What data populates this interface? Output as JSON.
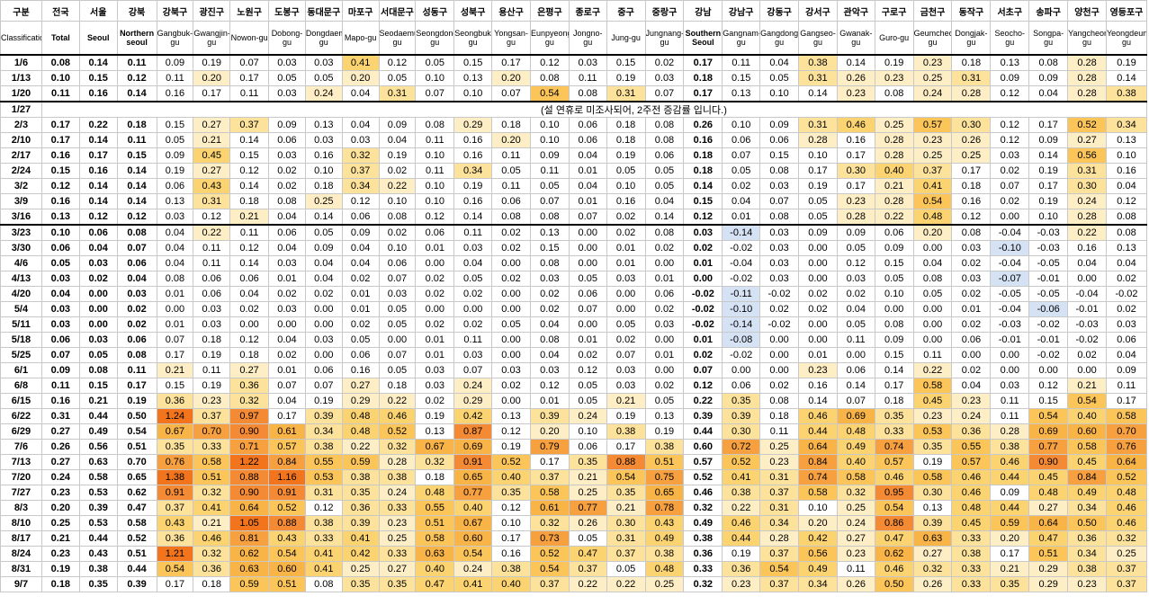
{
  "columns": [
    {
      "ko": "구분",
      "en": "Classification"
    },
    {
      "ko": "전국",
      "en": "Total"
    },
    {
      "ko": "서울",
      "en": "Seoul"
    },
    {
      "ko": "강북",
      "en": "Northern seoul"
    },
    {
      "ko": "강북구",
      "en": "Gangbuk-gu"
    },
    {
      "ko": "광진구",
      "en": "Gwangjin-gu"
    },
    {
      "ko": "노원구",
      "en": "Nowon-gu"
    },
    {
      "ko": "도봉구",
      "en": "Dobong-gu"
    },
    {
      "ko": "동대문구",
      "en": "Dongdaemun-gu"
    },
    {
      "ko": "마포구",
      "en": "Mapo-gu"
    },
    {
      "ko": "서대문구",
      "en": "Seodaemun-gu"
    },
    {
      "ko": "성동구",
      "en": "Seongdong-gu"
    },
    {
      "ko": "성북구",
      "en": "Seongbuk-gu"
    },
    {
      "ko": "용산구",
      "en": "Yongsan-gu"
    },
    {
      "ko": "은평구",
      "en": "Eunpyeong-gu"
    },
    {
      "ko": "종로구",
      "en": "Jongno-gu"
    },
    {
      "ko": "중구",
      "en": "Jung-gu"
    },
    {
      "ko": "중랑구",
      "en": "Jungnang-gu"
    },
    {
      "ko": "강남",
      "en": "Southern Seoul"
    },
    {
      "ko": "강남구",
      "en": "Gangnam-gu"
    },
    {
      "ko": "강동구",
      "en": "Gangdong-gu"
    },
    {
      "ko": "강서구",
      "en": "Gangseo-gu"
    },
    {
      "ko": "관악구",
      "en": "Gwanak-gu"
    },
    {
      "ko": "구로구",
      "en": "Guro-gu"
    },
    {
      "ko": "금천구",
      "en": "Geumcheon-gu"
    },
    {
      "ko": "동작구",
      "en": "Dongjak-gu"
    },
    {
      "ko": "서초구",
      "en": "Seocho-gu"
    },
    {
      "ko": "송파구",
      "en": "Songpa-gu"
    },
    {
      "ko": "양천구",
      "en": "Yangcheon-gu"
    },
    {
      "ko": "영등포구",
      "en": "Yeongdeungpo-gu"
    }
  ],
  "note_1_27": "(설 연휴로 미조사되어, 2주전 증감률 입니다.)",
  "rows": [
    {
      "date": "1/6",
      "values": [
        "0.08",
        "0.14",
        "0.11",
        "0.09",
        "0.19",
        "0.07",
        "0.03",
        "0.03",
        "0.41",
        "0.12",
        "0.05",
        "0.15",
        "0.17",
        "0.12",
        "0.03",
        "0.15",
        "0.02",
        "0.17",
        "0.11",
        "0.04",
        "0.38",
        "0.14",
        "0.19",
        "0.23",
        "0.18",
        "0.13",
        "0.08",
        "0.28",
        "0.19"
      ]
    },
    {
      "date": "1/13",
      "values": [
        "0.10",
        "0.15",
        "0.12",
        "0.11",
        "0.20",
        "0.17",
        "0.05",
        "0.05",
        "0.20",
        "0.05",
        "0.10",
        "0.13",
        "0.20",
        "0.08",
        "0.11",
        "0.19",
        "0.03",
        "0.18",
        "0.15",
        "0.05",
        "0.31",
        "0.26",
        "0.23",
        "0.25",
        "0.31",
        "0.09",
        "0.09",
        "0.28",
        "0.14"
      ]
    },
    {
      "date": "1/20",
      "values": [
        "0.11",
        "0.16",
        "0.14",
        "0.16",
        "0.17",
        "0.11",
        "0.03",
        "0.24",
        "0.04",
        "0.31",
        "0.07",
        "0.10",
        "0.07",
        "0.54",
        "0.08",
        "0.31",
        "0.07",
        "0.17",
        "0.13",
        "0.10",
        "0.14",
        "0.23",
        "0.08",
        "0.24",
        "0.28",
        "0.12",
        "0.04",
        "0.28",
        "0.38"
      ]
    },
    {
      "date": "1/27",
      "note": true
    },
    {
      "date": "2/3",
      "values": [
        "0.17",
        "0.22",
        "0.18",
        "0.15",
        "0.27",
        "0.37",
        "0.09",
        "0.13",
        "0.04",
        "0.09",
        "0.08",
        "0.29",
        "0.18",
        "0.10",
        "0.06",
        "0.18",
        "0.08",
        "0.26",
        "0.10",
        "0.09",
        "0.31",
        "0.46",
        "0.25",
        "0.57",
        "0.30",
        "0.12",
        "0.17",
        "0.52",
        "0.34"
      ]
    },
    {
      "date": "2/10",
      "values": [
        "0.17",
        "0.14",
        "0.11",
        "0.05",
        "0.21",
        "0.14",
        "0.06",
        "0.03",
        "0.03",
        "0.04",
        "0.11",
        "0.16",
        "0.20",
        "0.10",
        "0.06",
        "0.18",
        "0.08",
        "0.16",
        "0.06",
        "0.06",
        "0.28",
        "0.16",
        "0.28",
        "0.23",
        "0.26",
        "0.12",
        "0.09",
        "0.27",
        "0.13"
      ]
    },
    {
      "date": "2/17",
      "values": [
        "0.16",
        "0.17",
        "0.15",
        "0.09",
        "0.45",
        "0.15",
        "0.03",
        "0.16",
        "0.32",
        "0.19",
        "0.10",
        "0.16",
        "0.11",
        "0.09",
        "0.04",
        "0.19",
        "0.06",
        "0.18",
        "0.07",
        "0.15",
        "0.10",
        "0.17",
        "0.28",
        "0.25",
        "0.25",
        "0.03",
        "0.14",
        "0.56",
        "0.10"
      ]
    },
    {
      "date": "2/24",
      "values": [
        "0.15",
        "0.16",
        "0.14",
        "0.19",
        "0.27",
        "0.12",
        "0.02",
        "0.10",
        "0.37",
        "0.02",
        "0.11",
        "0.34",
        "0.05",
        "0.11",
        "0.01",
        "0.05",
        "0.05",
        "0.18",
        "0.05",
        "0.08",
        "0.17",
        "0.30",
        "0.40",
        "0.37",
        "0.17",
        "0.02",
        "0.19",
        "0.31",
        "0.16"
      ]
    },
    {
      "date": "3/2",
      "values": [
        "0.12",
        "0.14",
        "0.14",
        "0.06",
        "0.43",
        "0.14",
        "0.02",
        "0.18",
        "0.34",
        "0.22",
        "0.10",
        "0.19",
        "0.11",
        "0.05",
        "0.04",
        "0.10",
        "0.05",
        "0.14",
        "0.02",
        "0.03",
        "0.19",
        "0.17",
        "0.21",
        "0.41",
        "0.18",
        "0.07",
        "0.17",
        "0.30",
        "0.04"
      ]
    },
    {
      "date": "3/9",
      "values": [
        "0.16",
        "0.14",
        "0.14",
        "0.13",
        "0.31",
        "0.18",
        "0.08",
        "0.25",
        "0.12",
        "0.10",
        "0.10",
        "0.16",
        "0.06",
        "0.07",
        "0.01",
        "0.16",
        "0.04",
        "0.15",
        "0.04",
        "0.07",
        "0.05",
        "0.23",
        "0.28",
        "0.54",
        "0.16",
        "0.02",
        "0.19",
        "0.24",
        "0.12"
      ]
    },
    {
      "date": "3/16",
      "values": [
        "0.13",
        "0.12",
        "0.12",
        "0.03",
        "0.12",
        "0.21",
        "0.04",
        "0.14",
        "0.06",
        "0.08",
        "0.12",
        "0.14",
        "0.08",
        "0.08",
        "0.07",
        "0.02",
        "0.14",
        "0.12",
        "0.01",
        "0.08",
        "0.05",
        "0.28",
        "0.22",
        "0.48",
        "0.12",
        "0.00",
        "0.10",
        "0.28",
        "0.08"
      ]
    },
    {
      "date": "3/23",
      "values": [
        "0.10",
        "0.06",
        "0.08",
        "0.04",
        "0.22",
        "0.11",
        "0.06",
        "0.05",
        "0.09",
        "0.02",
        "0.06",
        "0.11",
        "0.02",
        "0.13",
        "0.00",
        "0.02",
        "0.08",
        "0.03",
        "-0.14",
        "0.03",
        "0.09",
        "0.09",
        "0.06",
        "0.20",
        "0.08",
        "-0.04",
        "-0.03",
        "0.22",
        "0.08"
      ]
    },
    {
      "date": "3/30",
      "values": [
        "0.06",
        "0.04",
        "0.07",
        "0.04",
        "0.11",
        "0.12",
        "0.04",
        "0.09",
        "0.04",
        "0.10",
        "0.01",
        "0.03",
        "0.02",
        "0.15",
        "0.00",
        "0.01",
        "0.02",
        "0.02",
        "-0.02",
        "0.03",
        "0.00",
        "0.05",
        "0.09",
        "0.00",
        "0.03",
        "-0.10",
        "-0.03",
        "0.16",
        "0.13"
      ]
    },
    {
      "date": "4/6",
      "values": [
        "0.05",
        "0.03",
        "0.06",
        "0.04",
        "0.11",
        "0.14",
        "0.03",
        "0.04",
        "0.04",
        "0.06",
        "0.00",
        "0.04",
        "0.00",
        "0.08",
        "0.00",
        "0.01",
        "0.00",
        "0.01",
        "-0.04",
        "0.03",
        "0.00",
        "0.12",
        "0.15",
        "0.04",
        "0.02",
        "-0.04",
        "-0.05",
        "0.04",
        "0.04"
      ]
    },
    {
      "date": "4/13",
      "values": [
        "0.03",
        "0.02",
        "0.04",
        "0.08",
        "0.06",
        "0.06",
        "0.01",
        "0.04",
        "0.02",
        "0.07",
        "0.02",
        "0.05",
        "0.02",
        "0.03",
        "0.05",
        "0.03",
        "0.01",
        "0.00",
        "-0.02",
        "0.03",
        "0.00",
        "0.03",
        "0.05",
        "0.08",
        "0.03",
        "-0.07",
        "-0.01",
        "0.00",
        "0.02"
      ]
    },
    {
      "date": "4/20",
      "values": [
        "0.04",
        "0.00",
        "0.03",
        "0.01",
        "0.06",
        "0.04",
        "0.02",
        "0.02",
        "0.01",
        "0.03",
        "0.02",
        "0.02",
        "0.00",
        "0.02",
        "0.06",
        "0.00",
        "0.06",
        "-0.02",
        "-0.11",
        "-0.02",
        "0.02",
        "0.02",
        "0.10",
        "0.05",
        "0.02",
        "-0.05",
        "-0.05",
        "-0.04",
        "-0.02"
      ]
    },
    {
      "date": "5/4",
      "values": [
        "0.03",
        "0.00",
        "0.02",
        "0.00",
        "0.03",
        "0.02",
        "0.03",
        "0.00",
        "0.01",
        "0.05",
        "0.00",
        "0.00",
        "0.00",
        "0.02",
        "0.07",
        "0.00",
        "0.02",
        "-0.02",
        "-0.10",
        "0.02",
        "0.02",
        "0.04",
        "0.00",
        "0.00",
        "0.01",
        "-0.04",
        "-0.06",
        "-0.01",
        "0.02"
      ]
    },
    {
      "date": "5/11",
      "values": [
        "0.03",
        "0.00",
        "0.02",
        "0.01",
        "0.03",
        "0.00",
        "0.00",
        "0.00",
        "0.02",
        "0.05",
        "0.02",
        "0.02",
        "0.05",
        "0.04",
        "0.00",
        "0.05",
        "0.03",
        "-0.02",
        "-0.14",
        "-0.02",
        "0.00",
        "0.05",
        "0.08",
        "0.00",
        "0.02",
        "-0.03",
        "-0.02",
        "-0.03",
        "0.03"
      ]
    },
    {
      "date": "5/18",
      "values": [
        "0.06",
        "0.03",
        "0.06",
        "0.07",
        "0.18",
        "0.12",
        "0.04",
        "0.03",
        "0.05",
        "0.00",
        "0.01",
        "0.11",
        "0.00",
        "0.08",
        "0.01",
        "0.02",
        "0.00",
        "0.01",
        "-0.08",
        "0.00",
        "0.00",
        "0.11",
        "0.09",
        "0.00",
        "0.06",
        "-0.01",
        "-0.01",
        "-0.02",
        "0.06"
      ]
    },
    {
      "date": "5/25",
      "values": [
        "0.07",
        "0.05",
        "0.08",
        "0.17",
        "0.19",
        "0.18",
        "0.02",
        "0.00",
        "0.06",
        "0.07",
        "0.01",
        "0.03",
        "0.00",
        "0.04",
        "0.02",
        "0.07",
        "0.01",
        "0.02",
        "-0.02",
        "0.00",
        "0.01",
        "0.00",
        "0.15",
        "0.11",
        "0.00",
        "0.00",
        "-0.02",
        "0.02",
        "0.04"
      ]
    },
    {
      "date": "6/1",
      "values": [
        "0.09",
        "0.08",
        "0.11",
        "0.21",
        "0.11",
        "0.27",
        "0.01",
        "0.06",
        "0.16",
        "0.05",
        "0.03",
        "0.07",
        "0.03",
        "0.03",
        "0.12",
        "0.03",
        "0.00",
        "0.07",
        "0.00",
        "0.00",
        "0.23",
        "0.06",
        "0.14",
        "0.22",
        "0.02",
        "0.00",
        "0.00",
        "0.00",
        "0.09"
      ]
    },
    {
      "date": "6/8",
      "values": [
        "0.11",
        "0.15",
        "0.17",
        "0.15",
        "0.19",
        "0.36",
        "0.07",
        "0.07",
        "0.27",
        "0.18",
        "0.03",
        "0.24",
        "0.02",
        "0.12",
        "0.05",
        "0.03",
        "0.02",
        "0.12",
        "0.06",
        "0.02",
        "0.16",
        "0.14",
        "0.17",
        "0.58",
        "0.04",
        "0.03",
        "0.12",
        "0.21",
        "0.11"
      ]
    },
    {
      "date": "6/15",
      "values": [
        "0.16",
        "0.21",
        "0.19",
        "0.36",
        "0.23",
        "0.32",
        "0.04",
        "0.19",
        "0.29",
        "0.22",
        "0.02",
        "0.29",
        "0.00",
        "0.01",
        "0.05",
        "0.21",
        "0.05",
        "0.22",
        "0.35",
        "0.08",
        "0.14",
        "0.07",
        "0.18",
        "0.45",
        "0.23",
        "0.11",
        "0.15",
        "0.54",
        "0.17"
      ]
    },
    {
      "date": "6/22",
      "values": [
        "0.31",
        "0.44",
        "0.50",
        "1.24",
        "0.37",
        "0.97",
        "0.17",
        "0.39",
        "0.48",
        "0.46",
        "0.19",
        "0.42",
        "0.13",
        "0.39",
        "0.24",
        "0.19",
        "0.13",
        "0.39",
        "0.39",
        "0.18",
        "0.46",
        "0.69",
        "0.35",
        "0.23",
        "0.24",
        "0.11",
        "0.54",
        "0.40",
        "0.58"
      ]
    },
    {
      "date": "6/29",
      "values": [
        "0.27",
        "0.49",
        "0.54",
        "0.67",
        "0.70",
        "0.90",
        "0.61",
        "0.34",
        "0.48",
        "0.52",
        "0.13",
        "0.87",
        "0.12",
        "0.20",
        "0.10",
        "0.38",
        "0.19",
        "0.44",
        "0.30",
        "0.11",
        "0.44",
        "0.48",
        "0.33",
        "0.53",
        "0.36",
        "0.28",
        "0.69",
        "0.60",
        "0.70"
      ]
    },
    {
      "date": "7/6",
      "values": [
        "0.26",
        "0.56",
        "0.51",
        "0.35",
        "0.33",
        "0.71",
        "0.57",
        "0.38",
        "0.22",
        "0.32",
        "0.67",
        "0.69",
        "0.19",
        "0.79",
        "0.06",
        "0.17",
        "0.38",
        "0.60",
        "0.72",
        "0.25",
        "0.64",
        "0.49",
        "0.74",
        "0.35",
        "0.55",
        "0.38",
        "0.77",
        "0.58",
        "0.76"
      ]
    },
    {
      "date": "7/13",
      "values": [
        "0.27",
        "0.63",
        "0.70",
        "0.76",
        "0.58",
        "1.22",
        "0.84",
        "0.55",
        "0.59",
        "0.28",
        "0.32",
        "0.91",
        "0.52",
        "0.17",
        "0.35",
        "0.88",
        "0.51",
        "0.57",
        "0.52",
        "0.23",
        "0.84",
        "0.40",
        "0.57",
        "0.19",
        "0.57",
        "0.46",
        "0.90",
        "0.45",
        "0.64"
      ]
    },
    {
      "date": "7/20",
      "values": [
        "0.24",
        "0.58",
        "0.65",
        "1.38",
        "0.51",
        "0.88",
        "1.16",
        "0.53",
        "0.38",
        "0.38",
        "0.18",
        "0.65",
        "0.40",
        "0.37",
        "0.21",
        "0.54",
        "0.75",
        "0.52",
        "0.41",
        "0.31",
        "0.74",
        "0.58",
        "0.46",
        "0.58",
        "0.46",
        "0.44",
        "0.45",
        "0.84",
        "0.52"
      ]
    },
    {
      "date": "7/27",
      "values": [
        "0.23",
        "0.53",
        "0.62",
        "0.91",
        "0.32",
        "0.90",
        "0.91",
        "0.31",
        "0.35",
        "0.24",
        "0.48",
        "0.77",
        "0.35",
        "0.58",
        "0.25",
        "0.35",
        "0.65",
        "0.46",
        "0.38",
        "0.37",
        "0.58",
        "0.32",
        "0.95",
        "0.30",
        "0.46",
        "0.09",
        "0.48",
        "0.49",
        "0.48"
      ]
    },
    {
      "date": "8/3",
      "values": [
        "0.20",
        "0.39",
        "0.47",
        "0.37",
        "0.41",
        "0.64",
        "0.52",
        "0.12",
        "0.36",
        "0.33",
        "0.55",
        "0.40",
        "0.12",
        "0.61",
        "0.77",
        "0.21",
        "0.78",
        "0.32",
        "0.22",
        "0.31",
        "0.10",
        "0.25",
        "0.54",
        "0.13",
        "0.48",
        "0.44",
        "0.27",
        "0.34",
        "0.46"
      ]
    },
    {
      "date": "8/10",
      "values": [
        "0.25",
        "0.53",
        "0.58",
        "0.43",
        "0.21",
        "1.05",
        "0.88",
        "0.38",
        "0.39",
        "0.23",
        "0.51",
        "0.67",
        "0.10",
        "0.32",
        "0.26",
        "0.30",
        "0.43",
        "0.49",
        "0.46",
        "0.34",
        "0.20",
        "0.24",
        "0.86",
        "0.39",
        "0.45",
        "0.59",
        "0.64",
        "0.50",
        "0.46"
      ]
    },
    {
      "date": "8/17",
      "values": [
        "0.21",
        "0.44",
        "0.52",
        "0.36",
        "0.46",
        "0.81",
        "0.43",
        "0.33",
        "0.41",
        "0.25",
        "0.58",
        "0.60",
        "0.17",
        "0.73",
        "0.05",
        "0.31",
        "0.49",
        "0.38",
        "0.44",
        "0.28",
        "0.42",
        "0.27",
        "0.47",
        "0.63",
        "0.33",
        "0.20",
        "0.47",
        "0.36",
        "0.32"
      ]
    },
    {
      "date": "8/24",
      "values": [
        "0.23",
        "0.43",
        "0.51",
        "1.21",
        "0.32",
        "0.62",
        "0.54",
        "0.41",
        "0.42",
        "0.33",
        "0.63",
        "0.54",
        "0.16",
        "0.52",
        "0.47",
        "0.37",
        "0.38",
        "0.36",
        "0.19",
        "0.37",
        "0.56",
        "0.23",
        "0.62",
        "0.27",
        "0.38",
        "0.17",
        "0.51",
        "0.34",
        "0.25"
      ]
    },
    {
      "date": "8/31",
      "values": [
        "0.19",
        "0.38",
        "0.44",
        "0.54",
        "0.36",
        "0.63",
        "0.60",
        "0.41",
        "0.25",
        "0.27",
        "0.40",
        "0.24",
        "0.38",
        "0.54",
        "0.37",
        "0.05",
        "0.48",
        "0.33",
        "0.36",
        "0.54",
        "0.49",
        "0.11",
        "0.46",
        "0.32",
        "0.33",
        "0.21",
        "0.29",
        "0.38",
        "0.37"
      ]
    },
    {
      "date": "9/7",
      "values": [
        "0.18",
        "0.35",
        "0.39",
        "0.17",
        "0.18",
        "0.59",
        "0.51",
        "0.08",
        "0.35",
        "0.35",
        "0.47",
        "0.41",
        "0.40",
        "0.37",
        "0.22",
        "0.22",
        "0.25",
        "0.32",
        "0.23",
        "0.37",
        "0.34",
        "0.26",
        "0.50",
        "0.26",
        "0.33",
        "0.35",
        "0.29",
        "0.23",
        "0.37"
      ]
    }
  ]
}
